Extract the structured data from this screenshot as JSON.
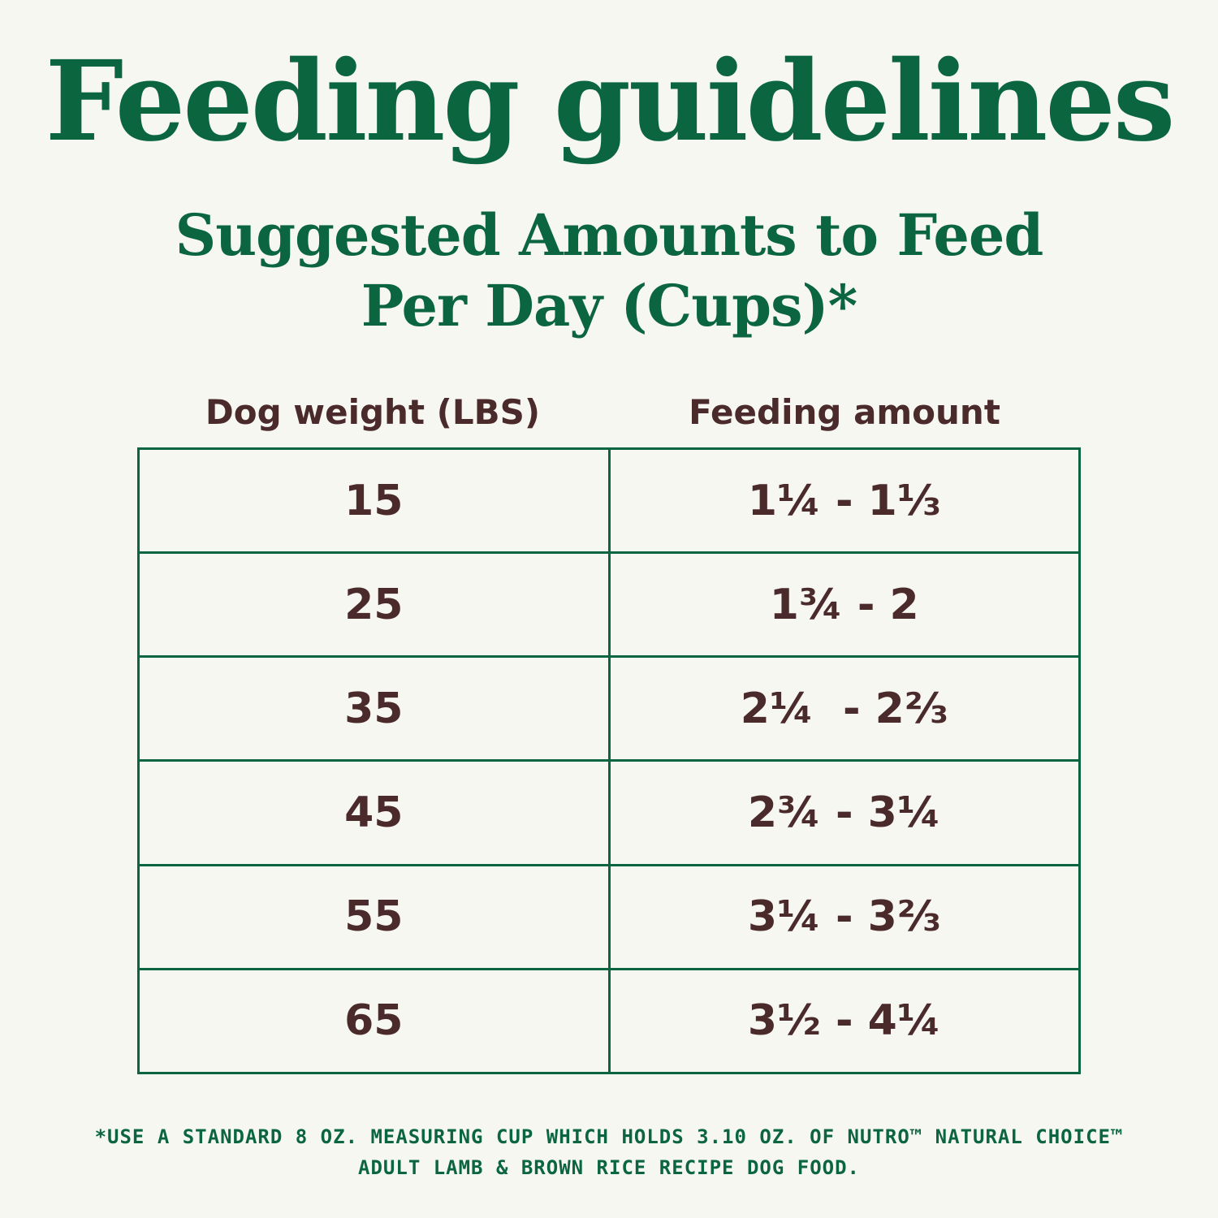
{
  "header": {
    "title": "Feeding guidelines",
    "subtitle": [
      "Suggested Amounts to Feed",
      "Per Day (Cups)*"
    ]
  },
  "table": {
    "columns": [
      "Dog weight (LBS)",
      "Feeding amount"
    ],
    "rows": [
      [
        15,
        "1¼ - 1⅓"
      ],
      [
        25,
        "1¾ - 2"
      ],
      [
        35,
        "2¼  - 2⅔"
      ],
      [
        45,
        "2¾ - 3¼"
      ],
      [
        55,
        "3¼ - 3⅔"
      ],
      [
        65,
        "3½ - 4¼"
      ]
    ]
  },
  "footnote": [
    "*USE A STANDARD 8 OZ. MEASURING CUP WHICH HOLDS 3.10 OZ. OF NUTRO™ NATURAL CHOICE™",
    "ADULT LAMB & BROWN RICE RECIPE DOG FOOD."
  ]
}
